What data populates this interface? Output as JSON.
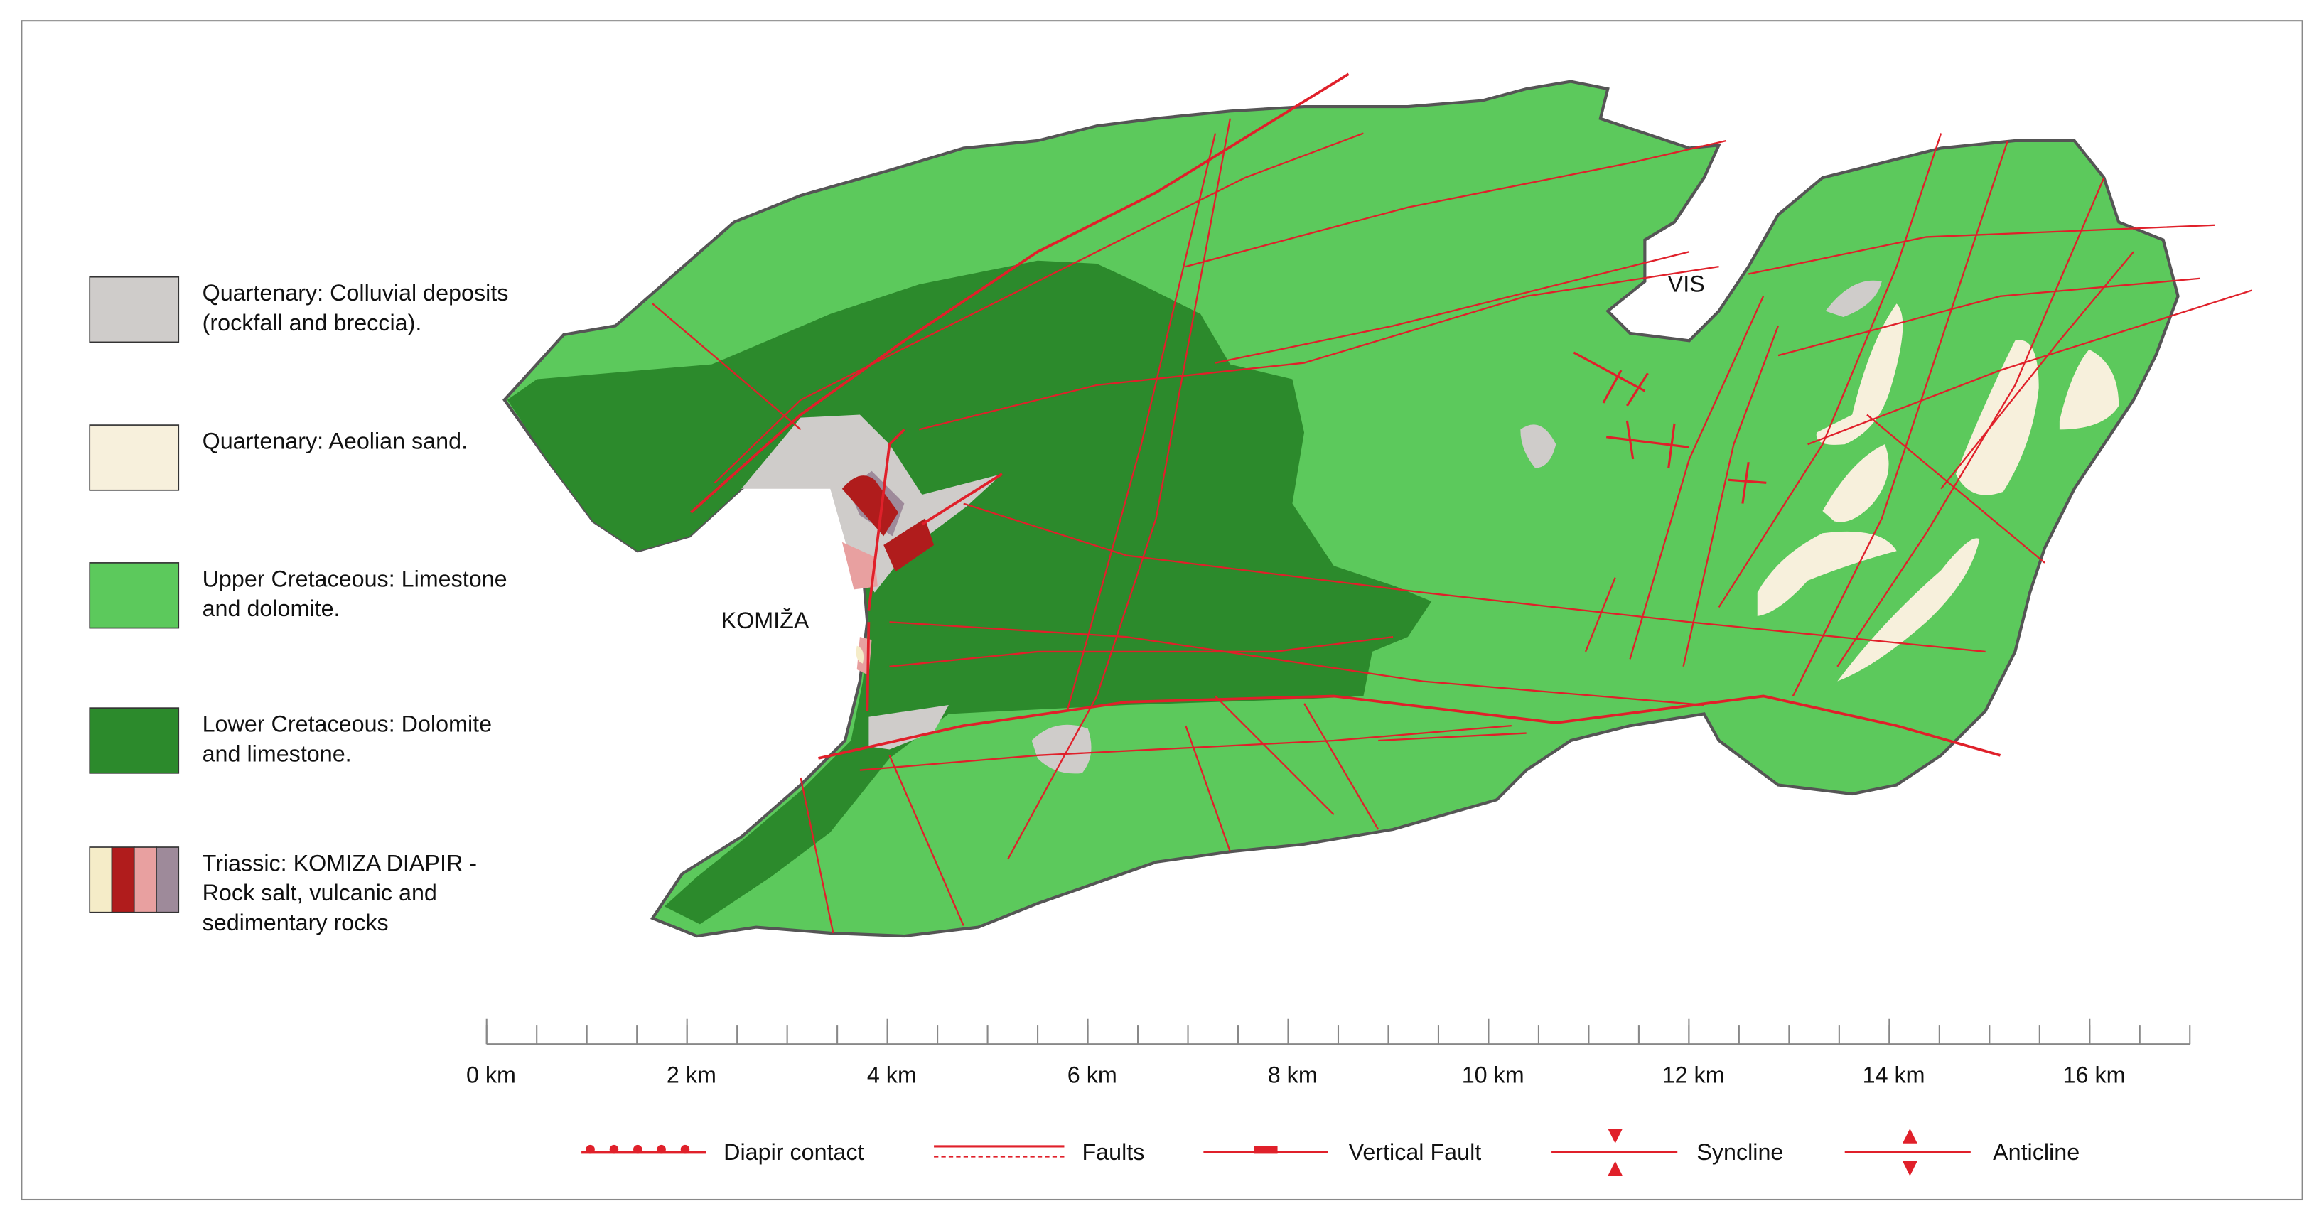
{
  "map": {
    "places": [
      "KOMIŽA",
      "VIS"
    ],
    "legend": [
      {
        "lines": [
          "Quartenary: Colluvial deposits",
          "(rockfall and breccia)."
        ],
        "colors": [
          "#cfccca"
        ]
      },
      {
        "lines": [
          "Quartenary: Aeolian sand."
        ],
        "colors": [
          "#f7f0dc"
        ]
      },
      {
        "lines": [
          "Upper Cretaceous: Limestone",
          "and dolomite."
        ],
        "colors": [
          "#5cc95c"
        ]
      },
      {
        "lines": [
          "Lower Cretaceous: Dolomite",
          "and limestone."
        ],
        "colors": [
          "#2c8a2c"
        ]
      },
      {
        "lines": [
          "Triassic: KOMIZA DIAPIR -",
          "Rock salt, vulcanic and",
          "sedimentary rocks"
        ],
        "colors": [
          "#f5ecc8",
          "#b01c1c",
          "#e8a0a0",
          "#9e8a9a"
        ]
      }
    ],
    "scale": {
      "xlim": [
        0,
        17
      ],
      "ticks": [
        {
          "value": 0,
          "label": "0 km"
        },
        {
          "value": 2,
          "label": "2 km"
        },
        {
          "value": 4,
          "label": "4 km"
        },
        {
          "value": 6,
          "label": "6 km"
        },
        {
          "value": 8,
          "label": "8 km"
        },
        {
          "value": 10,
          "label": "10 km"
        },
        {
          "value": 12,
          "label": "12 km"
        },
        {
          "value": 14,
          "label": "14 km"
        },
        {
          "value": 16,
          "label": "16 km"
        }
      ]
    },
    "symbols": [
      "Diapir contact",
      "Faults",
      "Vertical Fault",
      "Syncline",
      "Anticline"
    ]
  }
}
